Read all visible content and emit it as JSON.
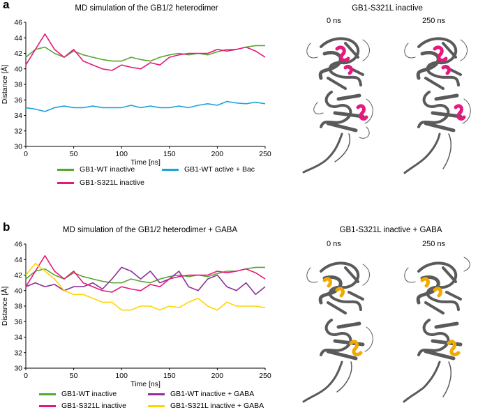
{
  "panels": {
    "a": {
      "letter": "a",
      "chart_title": "MD simulation of the GB1/2 heterodimer",
      "structure_title": "GB1-S321L inactive",
      "time_left": "0 ns",
      "time_right": "250 ns",
      "highlight_color": "#e6187d",
      "legend": [
        {
          "label": "GB1-WT inactive",
          "color": "#55a630"
        },
        {
          "label": "GB1-WT active + Bac",
          "color": "#1aa3dc"
        },
        {
          "label": "GB1-S321L inactive",
          "color": "#e6187d"
        }
      ]
    },
    "b": {
      "letter": "b",
      "chart_title": "MD simulation of the GB1/2 heterodimer + GABA",
      "structure_title": "GB1-S321L inactive + GABA",
      "time_left": "0 ns",
      "time_right": "250 ns",
      "highlight_color": "#f2a900",
      "legend": [
        {
          "label": "GB1-WT inactive",
          "color": "#55a630"
        },
        {
          "label": "GB1-WT inactive + GABA",
          "color": "#8b2f97"
        },
        {
          "label": "GB1-S321L inactive",
          "color": "#e6187d"
        },
        {
          "label": "GB1-S321L inactive + GABA",
          "color": "#ffd500"
        }
      ]
    }
  },
  "chart_data": [
    {
      "type": "line",
      "title": "MD simulation of the GB1/2 heterodimer",
      "xlabel": "Time [ns]",
      "ylabel": "Distance [Å]",
      "xlim": [
        0,
        250
      ],
      "ylim": [
        30,
        46
      ],
      "xticks": [
        0,
        50,
        100,
        150,
        200,
        250
      ],
      "yticks": [
        30,
        32,
        34,
        36,
        38,
        40,
        42,
        44,
        46
      ],
      "x": [
        0,
        10,
        20,
        30,
        40,
        50,
        60,
        70,
        80,
        90,
        100,
        110,
        120,
        130,
        140,
        150,
        160,
        170,
        180,
        190,
        200,
        210,
        220,
        230,
        240,
        250
      ],
      "series": [
        {
          "name": "GB1-WT inactive",
          "color": "#55a630",
          "values": [
            41.5,
            42.5,
            42.8,
            42.0,
            41.5,
            42.3,
            41.8,
            41.5,
            41.2,
            41.0,
            41.0,
            41.5,
            41.2,
            41.0,
            41.5,
            41.8,
            42.0,
            41.8,
            42.0,
            41.8,
            42.2,
            42.5,
            42.5,
            42.8,
            43.0,
            43.0
          ]
        },
        {
          "name": "GB1-WT active + Bac",
          "color": "#1aa3dc",
          "values": [
            35.0,
            34.8,
            34.5,
            35.0,
            35.2,
            35.0,
            35.0,
            35.2,
            35.0,
            35.0,
            35.0,
            35.3,
            35.0,
            35.2,
            35.0,
            35.0,
            35.2,
            35.0,
            35.3,
            35.5,
            35.3,
            35.8,
            35.6,
            35.5,
            35.7,
            35.5
          ]
        },
        {
          "name": "GB1-S321L inactive",
          "color": "#e6187d",
          "values": [
            40.5,
            42.5,
            44.5,
            42.5,
            41.5,
            42.5,
            41.0,
            40.5,
            40.0,
            39.8,
            40.5,
            40.2,
            40.0,
            40.8,
            40.5,
            41.5,
            41.8,
            42.0,
            42.0,
            42.0,
            42.5,
            42.3,
            42.5,
            42.8,
            42.3,
            41.5
          ]
        }
      ]
    },
    {
      "type": "line",
      "title": "MD simulation of the GB1/2 heterodimer + GABA",
      "xlabel": "Time [ns]",
      "ylabel": "Distance [Å]",
      "xlim": [
        0,
        250
      ],
      "ylim": [
        30,
        46
      ],
      "xticks": [
        0,
        50,
        100,
        150,
        200,
        250
      ],
      "yticks": [
        30,
        32,
        34,
        36,
        38,
        40,
        42,
        44,
        46
      ],
      "x": [
        0,
        10,
        20,
        30,
        40,
        50,
        60,
        70,
        80,
        90,
        100,
        110,
        120,
        130,
        140,
        150,
        160,
        170,
        180,
        190,
        200,
        210,
        220,
        230,
        240,
        250
      ],
      "series": [
        {
          "name": "GB1-WT inactive",
          "color": "#55a630",
          "values": [
            41.5,
            42.5,
            42.8,
            42.0,
            41.5,
            42.3,
            41.8,
            41.5,
            41.2,
            41.0,
            41.0,
            41.5,
            41.2,
            41.0,
            41.5,
            41.8,
            42.0,
            41.8,
            42.0,
            41.8,
            42.2,
            42.5,
            42.5,
            42.8,
            43.0,
            43.0
          ]
        },
        {
          "name": "GB1-WT inactive + GABA",
          "color": "#8b2f97",
          "values": [
            40.5,
            41.0,
            40.5,
            40.8,
            40.0,
            40.5,
            40.5,
            41.0,
            40.2,
            41.5,
            43.0,
            42.5,
            41.5,
            42.5,
            41.0,
            41.5,
            42.5,
            40.5,
            40.0,
            41.5,
            42.0,
            40.5,
            40.0,
            41.0,
            39.5,
            40.5
          ]
        },
        {
          "name": "GB1-S321L inactive",
          "color": "#e6187d",
          "values": [
            40.5,
            42.5,
            44.5,
            42.5,
            41.5,
            42.5,
            41.0,
            40.5,
            40.0,
            39.8,
            40.5,
            40.2,
            40.0,
            40.8,
            40.5,
            41.5,
            41.8,
            42.0,
            42.0,
            42.0,
            42.5,
            42.3,
            42.5,
            42.8,
            42.3,
            41.5
          ]
        },
        {
          "name": "GB1-S321L inactive + GABA",
          "color": "#ffd500",
          "values": [
            42.0,
            43.5,
            42.5,
            41.5,
            40.0,
            39.5,
            39.5,
            39.0,
            38.5,
            38.5,
            37.5,
            37.5,
            38.0,
            38.0,
            37.5,
            38.0,
            37.8,
            38.5,
            39.0,
            38.0,
            37.5,
            38.5,
            38.0,
            38.0,
            38.0,
            37.8
          ]
        }
      ]
    }
  ]
}
